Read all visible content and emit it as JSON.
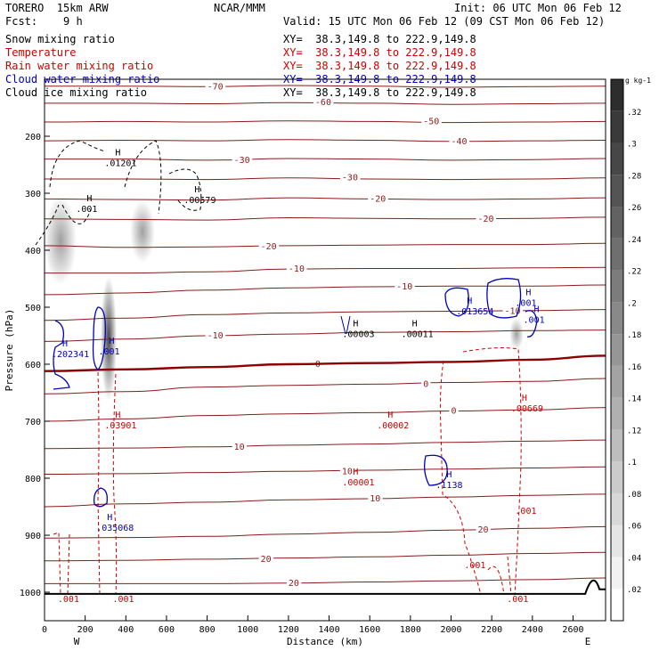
{
  "header": {
    "model": "TORERO  15km ARW",
    "org": "NCAR/MMM",
    "init": "Init: 06 UTC Mon 06 Feb 12",
    "fcst": "Fcst:    9 h",
    "valid": "Valid: 15 UTC Mon 06 Feb 12 (09 CST Mon 06 Feb 12)"
  },
  "fields": [
    {
      "name": "Snow mixing ratio",
      "xy": "XY=  38.3,149.8 to 222.9,149.8",
      "color": "#000000"
    },
    {
      "name": "Temperature",
      "xy": "XY=  38.3,149.8 to 222.9,149.8",
      "color": "#cc0000"
    },
    {
      "name": "Rain water mixing ratio",
      "xy": "XY=  38.3,149.8 to 222.9,149.8",
      "color": "#cc0000"
    },
    {
      "name": "Cloud water mixing ratio",
      "xy": "XY=  38.3,149.8 to 222.9,149.8",
      "color": "#0000bb"
    },
    {
      "name": "Cloud ice mixing ratio",
      "xy": "XY=  38.3,149.8 to 222.9,149.8",
      "color": "#000000"
    }
  ],
  "chart_data": {
    "type": "contour",
    "xlabel": "Distance (km)",
    "ylabel": "Pressure (hPa)",
    "xlim": [
      0,
      2760
    ],
    "ylim_hPa": [
      1050,
      100
    ],
    "x_ticks": [
      0,
      200,
      400,
      600,
      800,
      1000,
      1200,
      1400,
      1600,
      1800,
      2000,
      2200,
      2400,
      2600
    ],
    "y_ticks": [
      200,
      300,
      400,
      500,
      600,
      700,
      800,
      900,
      1000
    ],
    "x_end_labels": {
      "left": "W",
      "right": "E"
    },
    "colorbar": {
      "units": "g kg-1",
      "ticks": [
        ".02",
        ".04",
        ".06",
        ".08",
        ".1",
        ".12",
        ".14",
        ".16",
        ".18",
        ".2",
        ".22",
        ".24",
        ".26",
        ".28",
        ".3",
        ".32"
      ]
    },
    "temperature_contours": [
      {
        "label": "-70",
        "pressure": [
          112,
          112,
          113,
          111,
          112,
          114,
          113,
          112
        ]
      },
      {
        "label": "-60",
        "pressure": [
          142,
          142,
          143,
          141,
          142,
          144,
          143,
          142
        ]
      },
      {
        "label": "-50",
        "pressure": [
          175,
          174,
          175,
          173,
          174,
          176,
          175,
          174
        ]
      },
      {
        "label": "-40",
        "pressure": [
          208,
          207,
          208,
          206,
          207,
          209,
          208,
          207
        ]
      },
      {
        "label": "-30",
        "pressure": [
          240,
          240,
          242,
          239,
          240,
          242,
          241,
          239
        ]
      },
      {
        "label": "-30",
        "pressure": [
          275,
          275,
          276,
          273,
          275,
          276,
          275,
          273
        ]
      },
      {
        "label": "-20",
        "pressure": [
          310,
          311,
          312,
          308,
          310,
          311,
          310,
          308
        ]
      },
      {
        "label": "-20",
        "pressure": [
          345,
          346,
          347,
          343,
          344,
          345,
          344,
          342
        ]
      },
      {
        "label": "-20",
        "pressure": [
          392,
          395,
          394,
          392,
          391,
          390,
          390,
          388
        ]
      },
      {
        "label": "-10",
        "pressure": [
          440,
          440,
          438,
          433,
          432,
          432,
          431,
          430
        ]
      },
      {
        "label": "-10",
        "pressure": [
          478,
          475,
          470,
          466,
          464,
          463,
          463,
          461
        ]
      },
      {
        "label": "-10",
        "pressure": [
          523,
          519,
          513,
          510,
          508,
          507,
          506,
          504
        ]
      },
      {
        "label": "-10",
        "pressure": [
          560,
          556,
          550,
          547,
          544,
          543,
          541,
          540
        ]
      },
      {
        "label": "0",
        "pressure": [
          612,
          609,
          605,
          600,
          598,
          596,
          592,
          585
        ]
      },
      {
        "label": "0",
        "pressure": [
          652,
          648,
          640,
          637,
          635,
          632,
          630,
          625
        ]
      },
      {
        "label": "0",
        "pressure": [
          700,
          696,
          690,
          687,
          685,
          682,
          680,
          676
        ]
      },
      {
        "label": "10",
        "pressure": [
          748,
          747,
          745,
          742,
          740,
          737,
          735,
          733
        ]
      },
      {
        "label": "10",
        "pressure": [
          793,
          792,
          790,
          788,
          786,
          784,
          782,
          780
        ]
      },
      {
        "label": "10",
        "pressure": [
          850,
          845,
          842,
          838,
          836,
          833,
          830,
          828
        ]
      },
      {
        "label": "20",
        "pressure": [
          905,
          904,
          902,
          898,
          895,
          891,
          888,
          885
        ]
      },
      {
        "label": "20",
        "pressure": [
          945,
          944,
          942,
          940,
          938,
          935,
          932,
          930
        ]
      },
      {
        "label": "20",
        "pressure": [
          985,
          985,
          985,
          984,
          982,
          980,
          978,
          975
        ]
      }
    ],
    "temperature_contour_x": [
      0,
      400,
      800,
      1200,
      1600,
      2000,
      2400,
      2760
    ],
    "max_labels": [
      {
        "kind": "H",
        "value": ".01201",
        "x": 330,
        "p": 240,
        "color": "#000000"
      },
      {
        "kind": "H",
        "value": ".001",
        "x": 190,
        "p": 320,
        "color": "#000000"
      },
      {
        "kind": "H",
        "value": ".00579",
        "x": 720,
        "p": 305,
        "color": "#000000"
      },
      {
        "kind": "H",
        "value": ".013654",
        "x": 2060,
        "p": 500,
        "color": "#0000bb"
      },
      {
        "kind": "H",
        "value": ".001",
        "x": 2350,
        "p": 485,
        "color": "#0000bb"
      },
      {
        "kind": "H",
        "value": ".001",
        "x": 2390,
        "p": 515,
        "color": "#0000bb"
      },
      {
        "kind": "H",
        "value": ".00003",
        "x": 1500,
        "p": 540,
        "color": "#000000"
      },
      {
        "kind": "H",
        "value": ".00011",
        "x": 1790,
        "p": 540,
        "color": "#000000"
      },
      {
        "kind": "H",
        "value": ".202341",
        "x": 70,
        "p": 575,
        "color": "#0000bb"
      },
      {
        "kind": "H",
        "value": ".001",
        "x": 300,
        "p": 570,
        "color": "#0000bb"
      },
      {
        "kind": "H",
        "value": ".00669",
        "x": 2330,
        "p": 670,
        "color": "#cc0000"
      },
      {
        "kind": "H",
        "value": ".03901",
        "x": 330,
        "p": 700,
        "color": "#cc0000"
      },
      {
        "kind": "H",
        "value": ".00002",
        "x": 1670,
        "p": 700,
        "color": "#cc0000"
      },
      {
        "kind": "H",
        "value": ".00001",
        "x": 1500,
        "p": 800,
        "color": "#cc0000"
      },
      {
        "kind": "H",
        "value": ".1138",
        "x": 1960,
        "p": 805,
        "color": "#0000bb"
      },
      {
        "kind": "H",
        "value": ".035068",
        "x": 290,
        "p": 880,
        "color": "#0000bb"
      },
      {
        "kind": "",
        "value": ".001",
        "x": 2350,
        "p": 850,
        "color": "#cc0000"
      },
      {
        "kind": "",
        "value": ".001",
        "x": 2100,
        "p": 945,
        "color": "#cc0000"
      },
      {
        "kind": "",
        "value": ".001",
        "x": 100,
        "p": 1005,
        "color": "#cc0000"
      },
      {
        "kind": "",
        "value": ".001",
        "x": 370,
        "p": 1005,
        "color": "#cc0000"
      },
      {
        "kind": "",
        "value": ".001",
        "x": 2310,
        "p": 1005,
        "color": "#cc0000"
      }
    ]
  }
}
